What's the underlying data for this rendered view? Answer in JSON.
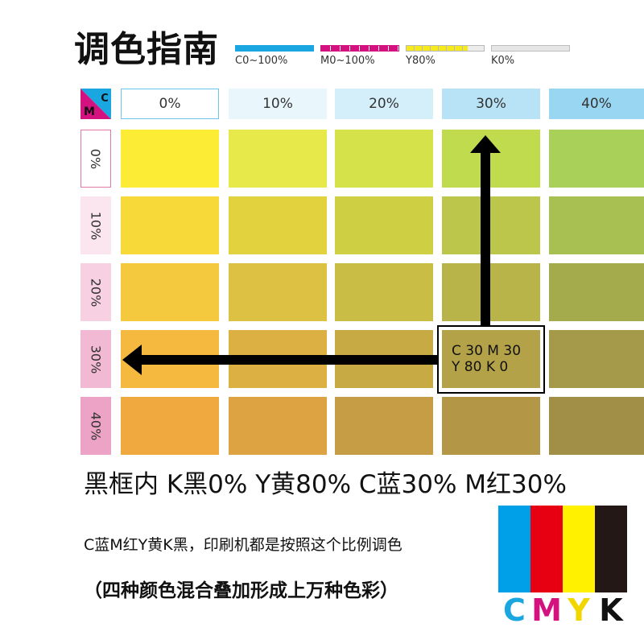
{
  "title": "调色指南",
  "legend": [
    {
      "label": "C0~100%",
      "color": "#1aa6e0",
      "style": "solid"
    },
    {
      "label": "M0~100%",
      "color": "#d4127f",
      "style": "segmented"
    },
    {
      "label": "Y80%",
      "color": "#f7ea1c",
      "style": "segmented-partial"
    },
    {
      "label": "K0%",
      "color": "#e6e6e6",
      "style": "empty"
    }
  ],
  "corner": {
    "c": "C",
    "m": "M"
  },
  "columns": [
    {
      "label": "0%",
      "bg": "#ffffff"
    },
    {
      "label": "10%",
      "bg": "#e9f6fc"
    },
    {
      "label": "20%",
      "bg": "#d4eefa"
    },
    {
      "label": "30%",
      "bg": "#b8e3f6"
    },
    {
      "label": "40%",
      "bg": "#98d6f1"
    }
  ],
  "rows": [
    {
      "label": "0%",
      "bg": "#ffffff"
    },
    {
      "label": "10%",
      "bg": "#fbe5ef"
    },
    {
      "label": "20%",
      "bg": "#f7d0e2"
    },
    {
      "label": "30%",
      "bg": "#f2b9d4"
    },
    {
      "label": "40%",
      "bg": "#eda3c6"
    }
  ],
  "grid": [
    [
      "#fcec36",
      "#e7e84a",
      "#d5e24a",
      "#c1db4e",
      "#a9d15a"
    ],
    [
      "#f8d93a",
      "#e2d23e",
      "#cfcf44",
      "#bcc64a",
      "#a8bf52"
    ],
    [
      "#f4c93e",
      "#dcc142",
      "#c9bd46",
      "#b8b44a",
      "#a3ab4c"
    ],
    [
      "#f4b93e",
      "#ddb043",
      "#c8aa44",
      "#b3a247",
      "#a49a4a"
    ],
    [
      "#f0a93e",
      "#dda343",
      "#c69d44",
      "#b39746",
      "#a18f48"
    ]
  ],
  "callout": {
    "line1": "C 30  M 30",
    "line2": "Y 80  K 0"
  },
  "summary": "黑框内 K黑0% Y黄80% C蓝30%  M红30%",
  "note1": "C蓝M红Y黄K黑，印刷机都是按照这个比例调色",
  "note2": "（四种颜色混合叠加形成上万种色彩）",
  "cmyk": [
    {
      "letter": "C",
      "color": "#00a0e9"
    },
    {
      "letter": "M",
      "color": "#e60012"
    },
    {
      "letter": "Y",
      "color": "#fff100"
    },
    {
      "letter": "K",
      "color": "#231815"
    }
  ],
  "cmyk_letter_colors": [
    "#1aa6e0",
    "#d4127f",
    "#f2d600",
    "#111111"
  ]
}
